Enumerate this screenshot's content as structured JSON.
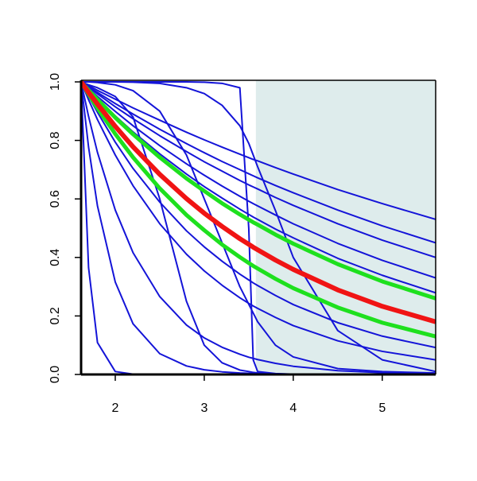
{
  "chart_data": {
    "type": "line",
    "x": [
      1.616,
      1.7,
      1.8,
      2.0,
      2.2,
      2.5,
      2.8,
      3.0,
      3.2,
      3.4,
      3.5,
      3.55,
      3.6,
      3.8,
      4.0,
      4.5,
      5.0,
      5.6
    ],
    "xlim": [
      1.616,
      5.6
    ],
    "xticks": [
      2,
      3,
      4,
      5
    ],
    "ylim": [
      0,
      1
    ],
    "yticks": [
      {
        "value": 0,
        "label": "0.0"
      },
      0.2,
      0.4,
      0.6,
      0.8,
      {
        "value": 1,
        "label": "1.0"
      }
    ],
    "highlight": {
      "xlim": [
        3.58,
        5.6
      ],
      "color": "#deecec"
    },
    "series": [
      {
        "color": "#1414d8",
        "width": 2,
        "values": [
          1,
          0.987,
          0.971,
          0.941,
          0.911,
          0.869,
          0.828,
          0.802,
          0.777,
          0.753,
          0.741,
          0.735,
          0.73,
          0.707,
          0.685,
          0.632,
          0.584,
          0.53
        ]
      },
      {
        "color": "#1414d8",
        "width": 2,
        "values": [
          1,
          0.983,
          0.964,
          0.926,
          0.89,
          0.838,
          0.789,
          0.758,
          0.728,
          0.7,
          0.686,
          0.679,
          0.672,
          0.646,
          0.621,
          0.562,
          0.508,
          0.45
        ]
      },
      {
        "color": "#1414d8",
        "width": 2,
        "values": [
          1,
          0.981,
          0.959,
          0.915,
          0.874,
          0.816,
          0.762,
          0.727,
          0.695,
          0.663,
          0.648,
          0.641,
          0.634,
          0.605,
          0.578,
          0.515,
          0.459,
          0.4
        ]
      },
      {
        "color": "#1414d8",
        "width": 2,
        "values": [
          1,
          0.977,
          0.95,
          0.899,
          0.85,
          0.782,
          0.72,
          0.681,
          0.644,
          0.609,
          0.592,
          0.584,
          0.576,
          0.545,
          0.515,
          0.448,
          0.39,
          0.33
        ]
      },
      {
        "color": "#1414d8",
        "width": 2,
        "values": [
          1,
          0.973,
          0.943,
          0.884,
          0.829,
          0.754,
          0.685,
          0.642,
          0.603,
          0.565,
          0.547,
          0.538,
          0.53,
          0.497,
          0.467,
          0.397,
          0.339,
          0.279
        ]
      },
      {
        "color": "#1414d8",
        "width": 2,
        "values": [
          1,
          0.939,
          0.871,
          0.75,
          0.645,
          0.515,
          0.411,
          0.354,
          0.305,
          0.262,
          0.243,
          0.234,
          0.226,
          0.195,
          0.167,
          0.115,
          0.079,
          0.05
        ]
      },
      {
        "color": "#1414d8",
        "width": 2,
        "values": [
          1,
          0.882,
          0.759,
          0.562,
          0.416,
          0.266,
          0.169,
          0.125,
          0.093,
          0.069,
          0.059,
          0.055,
          0.051,
          0.038,
          0.028,
          0.013,
          0.006,
          0.003
        ]
      },
      {
        "color": "#1414d8",
        "width": 2,
        "values": [
          1,
          0.365,
          0.109,
          0.01,
          0.001,
          0,
          0,
          0,
          0,
          0,
          0,
          0,
          0,
          0,
          0,
          0,
          0,
          0
        ]
      },
      {
        "color": "#1414d8",
        "width": 2,
        "values": [
          1,
          0.777,
          0.576,
          0.316,
          0.173,
          0.071,
          0.029,
          0.016,
          0.009,
          0.005,
          0.004,
          0.003,
          0.003,
          0.001,
          0.001,
          0,
          0,
          0
        ]
      },
      {
        "color": "#1414d8",
        "width": 2,
        "values": [
          1,
          1,
          1,
          1,
          1,
          1,
          1,
          0.999,
          0.995,
          0.98,
          0.5,
          0.05,
          0.01,
          0.003,
          0.001,
          0,
          0,
          0
        ]
      },
      {
        "color": "#1414d8",
        "width": 2,
        "values": [
          1,
          1,
          0.998,
          0.99,
          0.97,
          0.9,
          0.75,
          0.6,
          0.45,
          0.3,
          0.24,
          0.21,
          0.18,
          0.1,
          0.06,
          0.02,
          0.01,
          0.005
        ]
      },
      {
        "color": "#1414d8",
        "width": 2,
        "values": [
          1,
          1,
          1,
          1,
          0.999,
          0.995,
          0.98,
          0.96,
          0.92,
          0.85,
          0.79,
          0.75,
          0.71,
          0.56,
          0.4,
          0.15,
          0.05,
          0.01
        ]
      },
      {
        "color": "#1414d8",
        "width": 2,
        "values": [
          1,
          0.99,
          0.98,
          0.95,
          0.88,
          0.6,
          0.25,
          0.1,
          0.04,
          0.015,
          0.01,
          0.007,
          0.005,
          0.002,
          0.001,
          0,
          0,
          0
        ]
      },
      {
        "color": "#1414d8",
        "width": 2,
        "values": [
          1,
          0.951,
          0.896,
          0.794,
          0.704,
          0.589,
          0.491,
          0.436,
          0.387,
          0.343,
          0.323,
          0.313,
          0.304,
          0.27,
          0.239,
          0.177,
          0.131,
          0.092
        ]
      },
      {
        "color": "#1ee01e",
        "width": 5,
        "values": [
          1,
          0.972,
          0.94,
          0.878,
          0.821,
          0.742,
          0.67,
          0.627,
          0.585,
          0.547,
          0.529,
          0.52,
          0.512,
          0.478,
          0.447,
          0.377,
          0.318,
          0.26
        ]
      },
      {
        "color": "#1ee01e",
        "width": 5,
        "values": [
          1,
          0.958,
          0.91,
          0.822,
          0.742,
          0.636,
          0.545,
          0.493,
          0.444,
          0.401,
          0.381,
          0.371,
          0.362,
          0.327,
          0.295,
          0.229,
          0.177,
          0.13
        ]
      },
      {
        "color": "#f01414",
        "width": 6,
        "values": [
          1,
          0.964,
          0.924,
          0.848,
          0.778,
          0.684,
          0.601,
          0.551,
          0.506,
          0.464,
          0.445,
          0.435,
          0.426,
          0.391,
          0.359,
          0.289,
          0.233,
          0.18
        ]
      }
    ]
  }
}
